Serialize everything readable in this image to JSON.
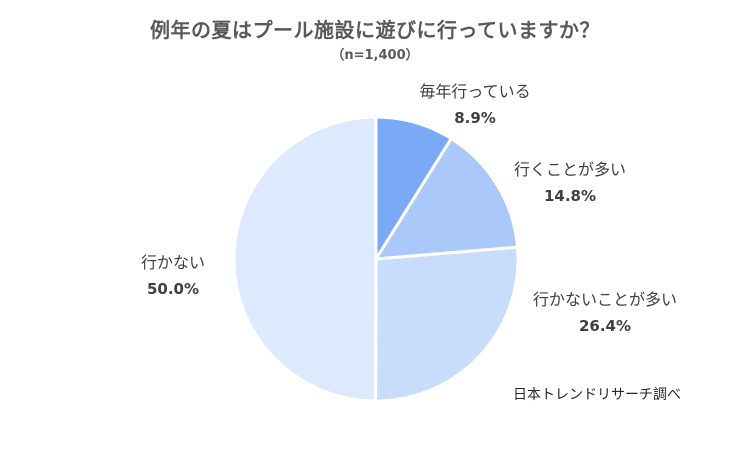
{
  "chart_data": {
    "type": "pie",
    "title": "例年の夏はプール施設に遊びに行っていますか？",
    "subtitle": "（n=1,400）",
    "categories": [
      "毎年行っている",
      "行くことが多い",
      "行かないことが多い",
      "行かない"
    ],
    "values": [
      8.9,
      14.8,
      26.4,
      50.0
    ],
    "value_labels": [
      "8.9%",
      "14.8%",
      "26.4%",
      "50.0%"
    ],
    "colors": [
      "#7aa9f7",
      "#aac8f9",
      "#c8dcfb",
      "#dde9fc"
    ],
    "source": "日本トレンドリサーチ調べ"
  }
}
